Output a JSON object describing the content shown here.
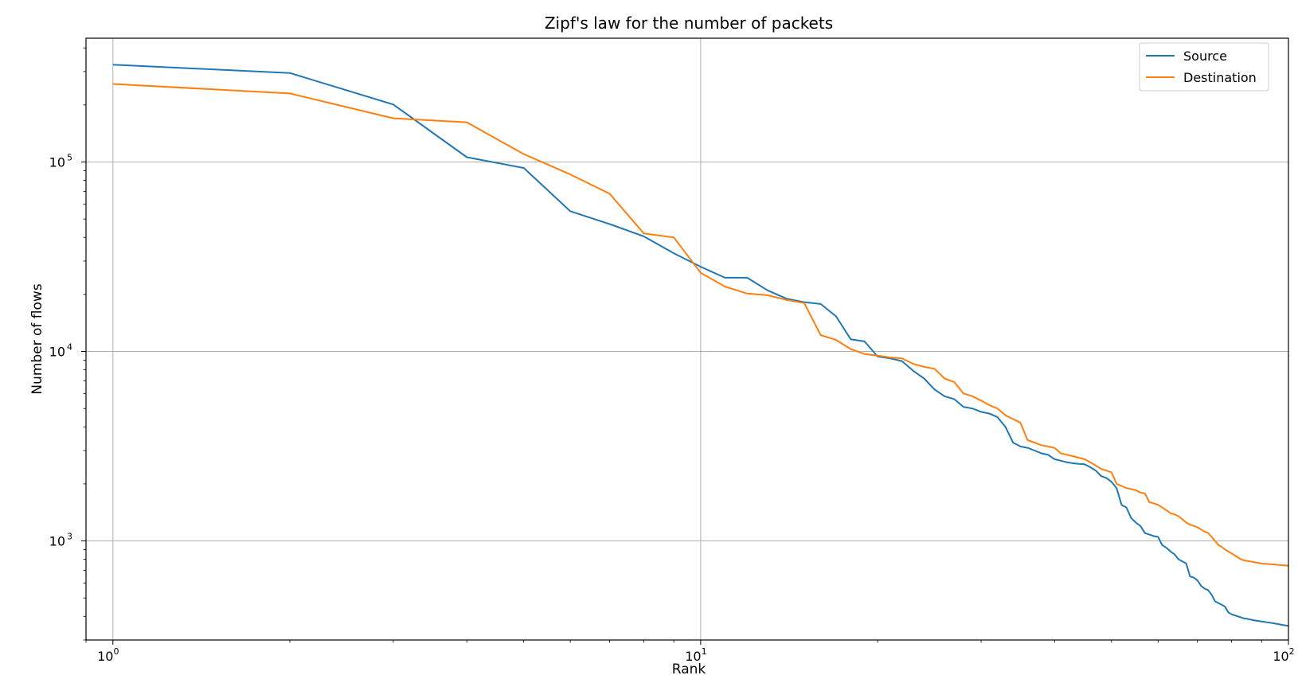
{
  "chart_data": {
    "type": "line",
    "title": "Zipf's law for the number of packets",
    "xlabel": "Rank",
    "ylabel": "Number of flows",
    "xscale": "log",
    "yscale": "log",
    "xlim": [
      0.9,
      100
    ],
    "ylim": [
      300,
      450000
    ],
    "xticks": [
      {
        "value": 1,
        "base": "10",
        "exp": "0"
      },
      {
        "value": 10,
        "base": "10",
        "exp": "1"
      },
      {
        "value": 100,
        "base": "10",
        "exp": "2"
      }
    ],
    "yticks": [
      {
        "value": 1000,
        "base": "10",
        "exp": "3"
      },
      {
        "value": 10000,
        "base": "10",
        "exp": "4"
      },
      {
        "value": 100000,
        "base": "10",
        "exp": "5"
      }
    ],
    "grid": true,
    "legend_position": "top-right",
    "series": [
      {
        "name": "Source",
        "color": "#1f77b4",
        "x": [
          1,
          2,
          3,
          4,
          5,
          6,
          7,
          8,
          9,
          10,
          11,
          12,
          13,
          14,
          15,
          16,
          17,
          18,
          19,
          20,
          21,
          22,
          23,
          24,
          25,
          26,
          27,
          28,
          29,
          30,
          31,
          32,
          33,
          34,
          35,
          36,
          37,
          38,
          39,
          40,
          41,
          42,
          43,
          44,
          45,
          46,
          47,
          48,
          49,
          50,
          51,
          52,
          53,
          54,
          55,
          56,
          57,
          58,
          59,
          60,
          61,
          62,
          63,
          64,
          65,
          66,
          67,
          68,
          69,
          70,
          71,
          72,
          73,
          74,
          75,
          76,
          77,
          78,
          79,
          80,
          81,
          82,
          83,
          84,
          85,
          86,
          87,
          88,
          89,
          90,
          91,
          92,
          93,
          94,
          95,
          96,
          97,
          98,
          99,
          100
        ],
        "y": [
          326000,
          295000,
          201000,
          106000,
          93000,
          55000,
          47000,
          40500,
          33000,
          28000,
          24500,
          24500,
          21000,
          19000,
          18200,
          17800,
          15300,
          11600,
          11300,
          9400,
          9200,
          8900,
          7900,
          7200,
          6300,
          5800,
          5600,
          5100,
          5000,
          4800,
          4700,
          4500,
          4000,
          3300,
          3150,
          3100,
          3000,
          2900,
          2850,
          2700,
          2650,
          2600,
          2570,
          2550,
          2540,
          2450,
          2350,
          2200,
          2150,
          2050,
          1900,
          1550,
          1500,
          1320,
          1250,
          1200,
          1100,
          1080,
          1060,
          1050,
          950,
          920,
          880,
          850,
          800,
          780,
          760,
          650,
          640,
          620,
          580,
          560,
          550,
          520,
          480,
          470,
          460,
          450,
          420,
          410,
          405,
          400,
          395,
          390,
          388,
          385,
          382,
          380,
          378,
          376,
          374,
          372,
          370,
          368,
          366,
          364,
          362,
          360,
          358,
          356
        ]
      },
      {
        "name": "Destination",
        "color": "#ff7f0e",
        "x": [
          1,
          2,
          3,
          4,
          5,
          6,
          7,
          8,
          9,
          10,
          11,
          12,
          13,
          14,
          15,
          16,
          17,
          18,
          19,
          20,
          21,
          22,
          23,
          24,
          25,
          26,
          27,
          28,
          29,
          30,
          31,
          32,
          33,
          34,
          35,
          36,
          37,
          38,
          39,
          40,
          41,
          42,
          43,
          44,
          45,
          46,
          47,
          48,
          49,
          50,
          51,
          52,
          53,
          54,
          55,
          56,
          57,
          58,
          59,
          60,
          61,
          62,
          63,
          64,
          65,
          66,
          67,
          68,
          69,
          70,
          71,
          72,
          73,
          74,
          75,
          76,
          77,
          78,
          79,
          80,
          81,
          82,
          83,
          84,
          85,
          86,
          87,
          88,
          89,
          90,
          91,
          92,
          93,
          94,
          95,
          96,
          97,
          98,
          99,
          100
        ],
        "y": [
          258000,
          230000,
          170000,
          162000,
          110000,
          86000,
          68000,
          42000,
          40000,
          26000,
          22000,
          20200,
          19800,
          18700,
          18000,
          12200,
          11500,
          10300,
          9700,
          9500,
          9300,
          9200,
          8600,
          8300,
          8100,
          7200,
          6900,
          6000,
          5800,
          5500,
          5200,
          5000,
          4600,
          4400,
          4200,
          3400,
          3300,
          3200,
          3150,
          3100,
          2900,
          2850,
          2800,
          2750,
          2700,
          2600,
          2500,
          2400,
          2350,
          2300,
          2000,
          1950,
          1900,
          1880,
          1850,
          1800,
          1780,
          1600,
          1580,
          1550,
          1500,
          1450,
          1400,
          1380,
          1350,
          1300,
          1250,
          1220,
          1200,
          1180,
          1150,
          1120,
          1100,
          1050,
          1000,
          950,
          930,
          900,
          880,
          860,
          840,
          820,
          800,
          790,
          785,
          780,
          775,
          770,
          765,
          760,
          758,
          756,
          754,
          752,
          750,
          748,
          746,
          744,
          742,
          740
        ]
      }
    ]
  }
}
